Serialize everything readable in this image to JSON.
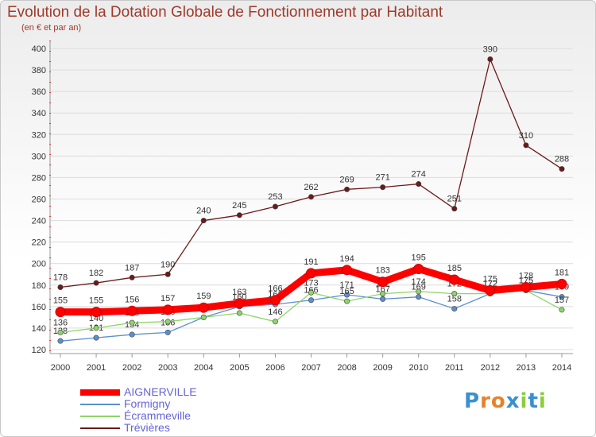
{
  "chart_data": {
    "type": "line",
    "title": "Evolution de la Dotation Globale de Fonctionnement par Habitant",
    "subtitle": "(en € et par an)",
    "xlabel": "",
    "ylabel": "",
    "ylim": [
      120,
      400
    ],
    "yticks": [
      120,
      140,
      160,
      180,
      200,
      220,
      240,
      260,
      280,
      300,
      320,
      340,
      360,
      380,
      400
    ],
    "categories": [
      "2000",
      "2001",
      "2002",
      "2003",
      "2004",
      "2005",
      "2006",
      "2007",
      "2008",
      "2009",
      "2010",
      "2011",
      "2012",
      "2013",
      "2014"
    ],
    "grid": true,
    "legend_position": "bottom-left",
    "series": [
      {
        "name": "Trévières",
        "color": "#6b1a1a",
        "values": [
          178,
          182,
          187,
          190,
          240,
          245,
          253,
          262,
          269,
          271,
          274,
          251,
          390,
          310,
          288
        ],
        "labels": [
          "178",
          "182",
          "187",
          "190",
          "240",
          "245",
          "253",
          "262",
          "269",
          "271",
          "274",
          "251",
          "390",
          "310",
          "288"
        ]
      },
      {
        "name": "Formigny",
        "color": "#5b8fcf",
        "values": [
          128,
          131,
          134,
          136,
          150,
          160,
          162,
          166,
          171,
          167,
          169,
          158,
          172,
          175,
          169
        ],
        "labels": [
          "128",
          "131",
          "134",
          "136",
          "150",
          "160",
          "162",
          "166",
          "171",
          "167",
          "169",
          "158",
          "172",
          "175",
          "169"
        ]
      },
      {
        "name": "Écrammeville",
        "color": "#8ed46a",
        "values": [
          136,
          140,
          145,
          146,
          150,
          154,
          146,
          173,
          165,
          172,
          174,
          172,
          172,
          175,
          157
        ],
        "labels": [
          "136",
          "140",
          "145",
          "146",
          "150",
          "154",
          "146",
          "173",
          "165",
          "172",
          "174",
          "172",
          "172",
          "175",
          "157"
        ]
      },
      {
        "name": "AIGNERVILLE",
        "color": "#ff0000",
        "values": [
          155,
          155,
          156,
          157,
          159,
          163,
          166,
          191,
          194,
          183,
          195,
          185,
          175,
          178,
          181
        ],
        "labels": [
          "155",
          "155",
          "156",
          "157",
          "159",
          "163",
          "166",
          "191",
          "194",
          "183",
          "195",
          "185",
          "175",
          "178",
          "181"
        ]
      }
    ]
  },
  "legend": {
    "items": [
      {
        "name": "AIGNERVILLE",
        "color": "#ff0000",
        "text_color": "#6464d8"
      },
      {
        "name": "Formigny",
        "color": "#5b8fcf",
        "text_color": "#6464d8"
      },
      {
        "name": "Écrammeville",
        "color": "#8ed46a",
        "text_color": "#6464d8"
      },
      {
        "name": "Trévières",
        "color": "#6b1a1a",
        "text_color": "#6464d8"
      }
    ]
  },
  "logo": {
    "text": "Proxiti"
  }
}
